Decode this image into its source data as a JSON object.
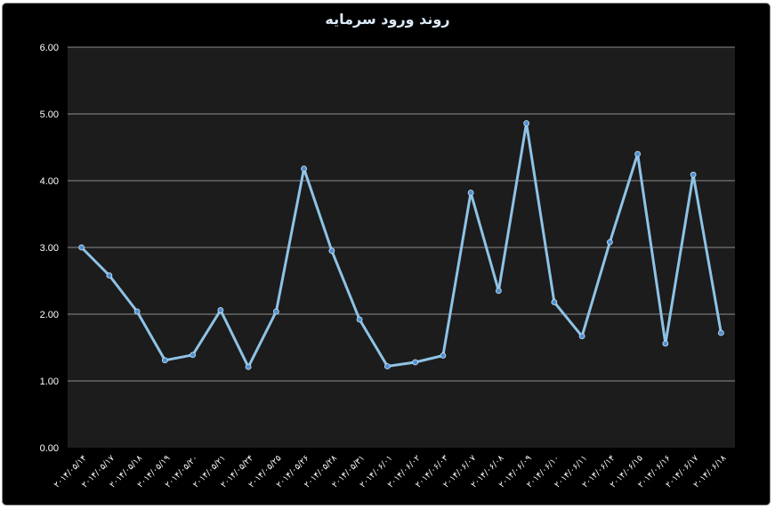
{
  "chart_data": {
    "type": "line",
    "title": "روند ورود سرمايه",
    "xlabel": "",
    "ylabel": "",
    "ylim": [
      0,
      6
    ],
    "yticks": [
      "0.00",
      "1.00",
      "2.00",
      "3.00",
      "4.00",
      "5.00",
      "6.00"
    ],
    "grid": true,
    "legend": "none",
    "colors": {
      "background": "#000000",
      "plot_area": "#1c1c1c",
      "gridline": "#8c8c8c",
      "line": "#8ec3e6",
      "marker": "#4f90d0",
      "text": "#ffffff",
      "title": "#dbe9f6"
    },
    "categories": [
      "۲۰۱۴/۰۵/۱۴",
      "۲۰۱۴/۰۵/۱۷",
      "۲۰۱۴/۰۵/۱۸",
      "۲۰۱۴/۰۵/۱۹",
      "۲۰۱۴/۰۵/۲۰",
      "۲۰۱۴/۰۵/۲۱",
      "۲۰۱۴/۰۵/۲۴",
      "۲۰۱۴/۰۵/۲۵",
      "۲۰۱۴/۰۵/۲۶",
      "۲۰۱۴/۰۵/۲۸",
      "۲۰۱۴/۰۵/۳۱",
      "۲۰۱۴/۰۶/۰۱",
      "۲۰۱۴/۰۶/۰۲",
      "۲۰۱۴/۰۶/۰۳",
      "۲۰۱۴/۰۶/۰۷",
      "۲۰۱۴/۰۶/۰۸",
      "۲۰۱۴/۰۶/۰۹",
      "۲۰۱۴/۰۶/۱۰",
      "۲۰۱۴/۰۶/۱۱",
      "۲۰۱۴/۰۶/۱۴",
      "۲۰۱۴/۰۶/۱۵",
      "۲۰۱۴/۰۶/۱۶",
      "۲۰۱۴/۰۶/۱۷",
      "۲۰۱۴/۰۶/۱۸"
    ],
    "values": [
      3.0,
      2.58,
      2.04,
      1.31,
      1.39,
      2.06,
      1.21,
      2.04,
      4.18,
      2.95,
      1.92,
      1.22,
      1.28,
      1.38,
      3.82,
      2.35,
      4.86,
      2.18,
      1.67,
      3.08,
      4.4,
      1.56,
      4.09,
      1.72
    ]
  }
}
